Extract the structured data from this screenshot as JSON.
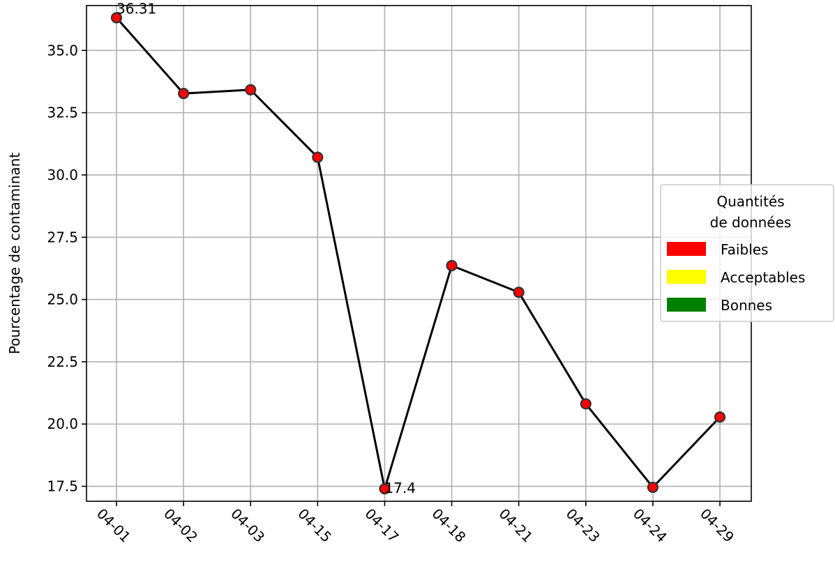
{
  "chart_data": {
    "type": "line",
    "title": "",
    "xlabel": "",
    "ylabel": "Pourcentage de contaminant",
    "categories": [
      "04-01",
      "04-02",
      "04-03",
      "04-15",
      "04-17",
      "04-18",
      "04-21",
      "04-23",
      "04-24",
      "04-29"
    ],
    "values": [
      36.31,
      33.27,
      33.42,
      30.71,
      17.4,
      26.36,
      25.29,
      20.81,
      17.46,
      20.28
    ],
    "point_colors": [
      "#ff0000",
      "#ff0000",
      "#ff0000",
      "#ff0000",
      "#ff0000",
      "#ff0000",
      "#ff0000",
      "#ff0000",
      "#ff0000",
      "#ff0000"
    ],
    "line_color": "#000000",
    "ylim": [
      16.9,
      36.8
    ],
    "yticks": [
      17.5,
      20.0,
      22.5,
      25.0,
      27.5,
      30.0,
      32.5,
      35.0
    ],
    "ytick_labels": [
      "17.5",
      "20.0",
      "22.5",
      "25.0",
      "27.5",
      "30.0",
      "32.5",
      "35.0"
    ],
    "grid": true,
    "annotations": [
      {
        "index": 0,
        "text": "36.31"
      },
      {
        "index": 4,
        "text": "17.4"
      }
    ],
    "legend": {
      "placement": "center-right",
      "title_lines": [
        "Quantités",
        "de données"
      ],
      "entries": [
        {
          "label": "Faibles",
          "color": "#ff0000"
        },
        {
          "label": "Acceptables",
          "color": "#ffff00"
        },
        {
          "label": "Bonnes",
          "color": "#008000"
        }
      ]
    }
  }
}
